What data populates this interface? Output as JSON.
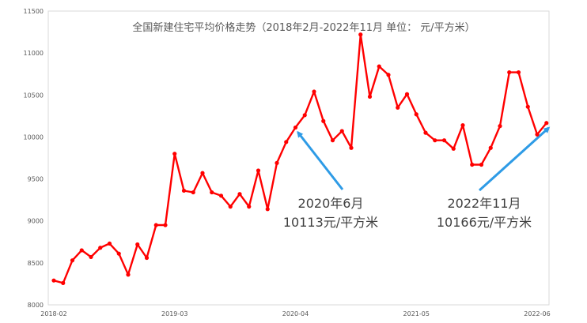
{
  "chart_data": {
    "type": "line",
    "title": "全国新建住宅平均价格走势（2018年2月-2022年11月   单位：  元/平方米）",
    "xlabel": "",
    "ylabel": "",
    "ylim": [
      8000,
      11500
    ],
    "yticks": [
      8000,
      8500,
      9000,
      9500,
      10000,
      10500,
      11000,
      11500
    ],
    "xtick_labels": [
      "2018-02",
      "2019-03",
      "2020-04",
      "2021-05",
      "2022-06"
    ],
    "grid": false,
    "legend": "none",
    "line_color": "#ff0000",
    "arrow_color": "#2e9be6",
    "series": [
      {
        "values": [
          8290,
          8260,
          8530,
          8650,
          8570,
          8680,
          8730,
          8610,
          8360,
          8720,
          8560,
          8950,
          8950,
          9800,
          9360,
          9340,
          9570,
          9340,
          9300,
          9170,
          9320,
          9170,
          9600,
          9140,
          9690,
          9940,
          10113,
          10260,
          10540,
          10190,
          9960,
          10070,
          9870,
          11220,
          10480,
          10840,
          10740,
          10350,
          10510,
          10270,
          10050,
          9960,
          9960,
          9860,
          10140,
          9670,
          9670,
          9870,
          10130,
          10770,
          10770,
          10360,
          10030,
          10166
        ]
      }
    ],
    "annotations": [
      {
        "point_index": 26,
        "line1": "2020年6月",
        "line2": "10113元/平方米"
      },
      {
        "point_index": 53,
        "line1": "2022年11月",
        "line2": "10166元/平方米"
      }
    ]
  }
}
